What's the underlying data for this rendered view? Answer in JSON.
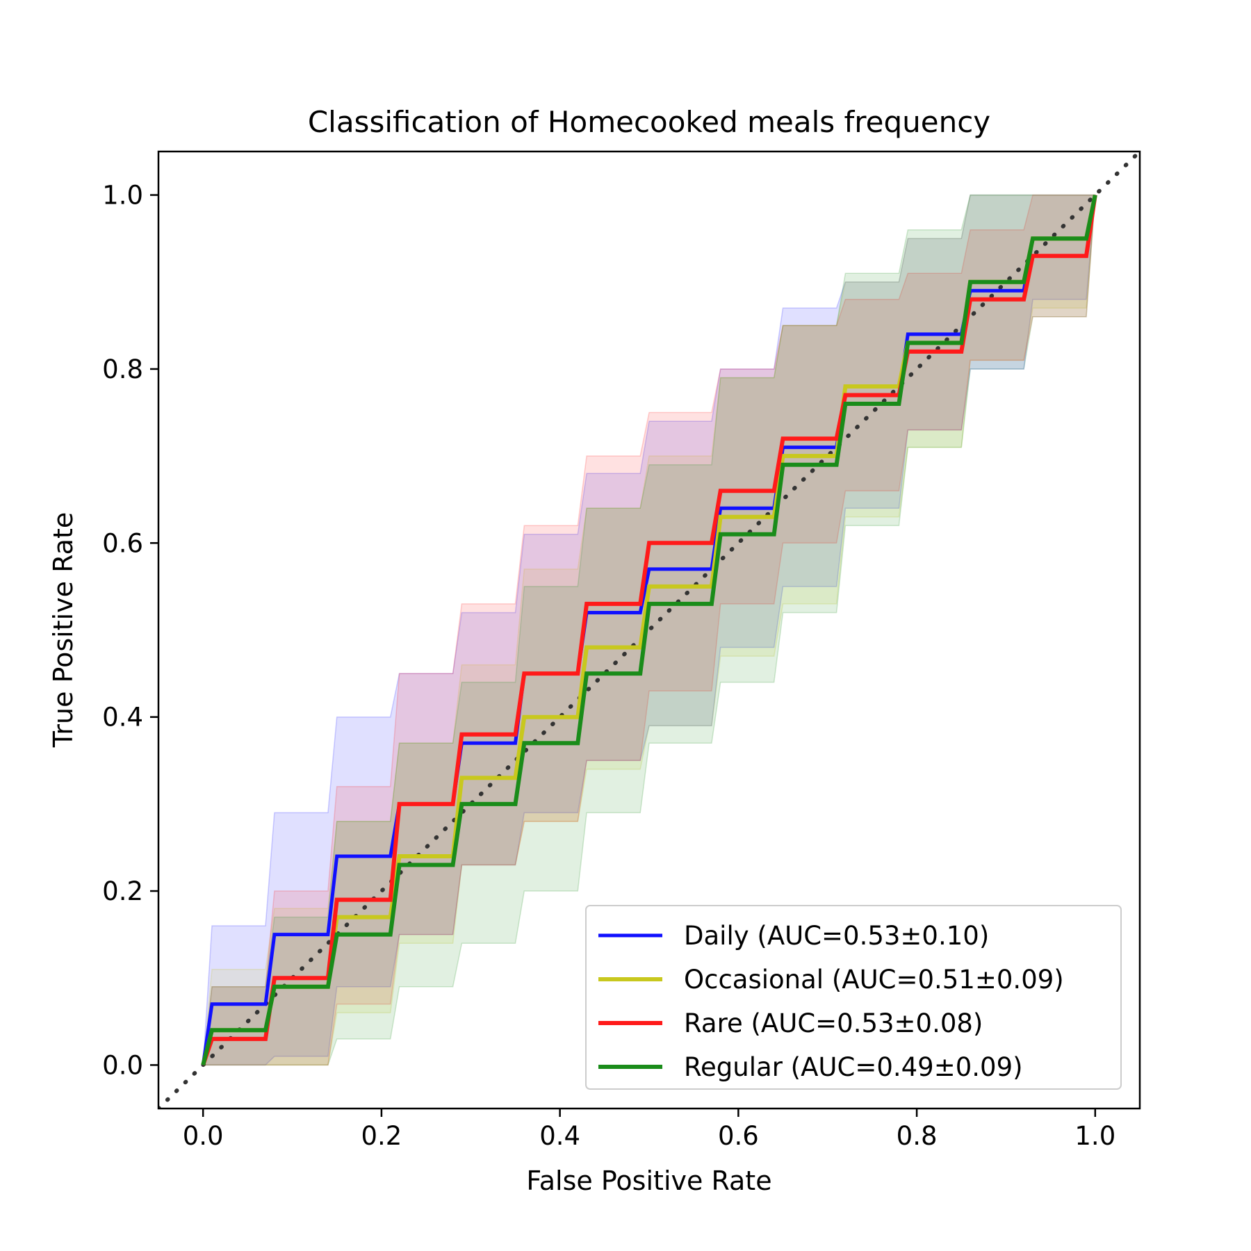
{
  "chart_data": {
    "type": "line",
    "title": "Classification of Homecooked meals frequency",
    "xlabel": "False Positive Rate",
    "ylabel": "True Positive Rate",
    "xlim": [
      -0.05,
      1.05
    ],
    "ylim": [
      -0.05,
      1.05
    ],
    "xticks": [
      "0.0",
      "0.2",
      "0.4",
      "0.6",
      "0.8",
      "1.0"
    ],
    "yticks": [
      "0.0",
      "0.2",
      "0.4",
      "0.6",
      "0.8",
      "1.0"
    ],
    "grid": false,
    "legend_position": "lower-right",
    "diagonal": {
      "style": "dotted",
      "color": "#333333"
    },
    "x": [
      0.0,
      0.01,
      0.07,
      0.08,
      0.14,
      0.15,
      0.21,
      0.22,
      0.28,
      0.29,
      0.35,
      0.36,
      0.42,
      0.43,
      0.49,
      0.5,
      0.57,
      0.58,
      0.64,
      0.65,
      0.71,
      0.72,
      0.78,
      0.79,
      0.85,
      0.86,
      0.92,
      0.93,
      0.99,
      1.0
    ],
    "series": [
      {
        "name": "Daily (AUC=0.53±0.10)",
        "color": "#1010ff",
        "y": [
          0.0,
          0.07,
          0.07,
          0.15,
          0.15,
          0.24,
          0.24,
          0.3,
          0.3,
          0.37,
          0.37,
          0.45,
          0.45,
          0.52,
          0.52,
          0.57,
          0.57,
          0.64,
          0.64,
          0.71,
          0.71,
          0.77,
          0.77,
          0.84,
          0.84,
          0.89,
          0.89,
          0.95,
          0.95,
          1.0
        ],
        "band_upper": [
          0.0,
          0.16,
          0.16,
          0.29,
          0.29,
          0.4,
          0.4,
          0.45,
          0.45,
          0.52,
          0.52,
          0.61,
          0.61,
          0.68,
          0.68,
          0.74,
          0.74,
          0.8,
          0.8,
          0.87,
          0.87,
          0.9,
          0.9,
          0.95,
          0.95,
          1.0,
          1.0,
          1.0,
          1.0,
          1.0
        ],
        "band_lower": [
          0.0,
          0.0,
          0.0,
          0.01,
          0.01,
          0.09,
          0.09,
          0.15,
          0.15,
          0.23,
          0.23,
          0.29,
          0.29,
          0.35,
          0.35,
          0.39,
          0.39,
          0.48,
          0.48,
          0.55,
          0.55,
          0.64,
          0.64,
          0.73,
          0.73,
          0.8,
          0.8,
          0.88,
          0.88,
          1.0
        ]
      },
      {
        "name": "Occasional (AUC=0.51±0.09)",
        "color": "#c8c81e",
        "y": [
          0.0,
          0.04,
          0.04,
          0.09,
          0.09,
          0.17,
          0.17,
          0.24,
          0.24,
          0.33,
          0.33,
          0.4,
          0.4,
          0.48,
          0.48,
          0.55,
          0.55,
          0.63,
          0.63,
          0.7,
          0.7,
          0.78,
          0.78,
          0.83,
          0.83,
          0.9,
          0.9,
          0.95,
          0.95,
          1.0
        ],
        "band_upper": [
          0.0,
          0.11,
          0.11,
          0.18,
          0.18,
          0.28,
          0.28,
          0.37,
          0.37,
          0.46,
          0.46,
          0.57,
          0.57,
          0.64,
          0.64,
          0.7,
          0.7,
          0.79,
          0.79,
          0.85,
          0.85,
          0.9,
          0.9,
          0.95,
          0.95,
          1.0,
          1.0,
          1.0,
          1.0,
          1.0
        ],
        "band_lower": [
          0.0,
          0.0,
          0.0,
          0.0,
          0.0,
          0.06,
          0.06,
          0.14,
          0.14,
          0.23,
          0.23,
          0.28,
          0.28,
          0.34,
          0.34,
          0.39,
          0.39,
          0.47,
          0.47,
          0.53,
          0.53,
          0.63,
          0.63,
          0.71,
          0.71,
          0.81,
          0.81,
          0.87,
          0.87,
          1.0
        ]
      },
      {
        "name": "Rare (AUC=0.53±0.08)",
        "color": "#ff1a1a",
        "y": [
          0.0,
          0.03,
          0.03,
          0.1,
          0.1,
          0.19,
          0.19,
          0.3,
          0.3,
          0.38,
          0.38,
          0.45,
          0.45,
          0.53,
          0.53,
          0.6,
          0.6,
          0.66,
          0.66,
          0.72,
          0.72,
          0.77,
          0.77,
          0.82,
          0.82,
          0.88,
          0.88,
          0.93,
          0.93,
          1.0
        ],
        "band_upper": [
          0.0,
          0.09,
          0.09,
          0.2,
          0.2,
          0.32,
          0.32,
          0.45,
          0.45,
          0.53,
          0.53,
          0.62,
          0.62,
          0.7,
          0.7,
          0.75,
          0.75,
          0.8,
          0.8,
          0.85,
          0.85,
          0.88,
          0.88,
          0.91,
          0.91,
          0.96,
          0.96,
          1.0,
          1.0,
          1.0
        ],
        "band_lower": [
          0.0,
          0.0,
          0.0,
          0.0,
          0.0,
          0.07,
          0.07,
          0.15,
          0.15,
          0.23,
          0.23,
          0.28,
          0.28,
          0.35,
          0.35,
          0.43,
          0.43,
          0.53,
          0.53,
          0.6,
          0.6,
          0.66,
          0.66,
          0.73,
          0.73,
          0.81,
          0.81,
          0.86,
          0.86,
          1.0
        ]
      },
      {
        "name": "Regular (AUC=0.49±0.09)",
        "color": "#1a8c1a",
        "y": [
          0.0,
          0.04,
          0.04,
          0.09,
          0.09,
          0.15,
          0.15,
          0.23,
          0.23,
          0.3,
          0.3,
          0.37,
          0.37,
          0.45,
          0.45,
          0.53,
          0.53,
          0.61,
          0.61,
          0.69,
          0.69,
          0.76,
          0.76,
          0.83,
          0.83,
          0.9,
          0.9,
          0.95,
          0.95,
          1.0
        ],
        "band_upper": [
          0.0,
          0.09,
          0.09,
          0.17,
          0.17,
          0.28,
          0.28,
          0.37,
          0.37,
          0.44,
          0.44,
          0.55,
          0.55,
          0.64,
          0.64,
          0.69,
          0.69,
          0.79,
          0.79,
          0.85,
          0.85,
          0.91,
          0.91,
          0.96,
          0.96,
          1.0,
          1.0,
          1.0,
          1.0,
          1.0
        ],
        "band_lower": [
          0.0,
          0.0,
          0.0,
          0.0,
          0.0,
          0.03,
          0.03,
          0.09,
          0.09,
          0.14,
          0.14,
          0.2,
          0.2,
          0.29,
          0.29,
          0.37,
          0.37,
          0.44,
          0.44,
          0.52,
          0.52,
          0.62,
          0.62,
          0.71,
          0.71,
          0.8,
          0.8,
          0.86,
          0.86,
          1.0
        ]
      }
    ]
  }
}
